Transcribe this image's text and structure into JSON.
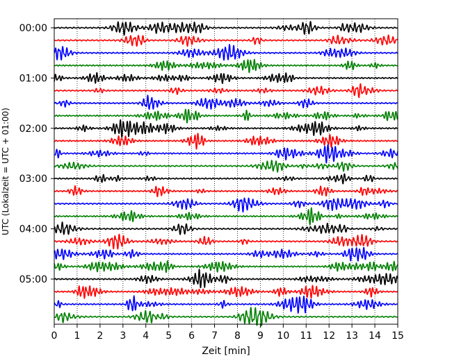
{
  "chart_data": {
    "type": "line",
    "title": "",
    "xlabel": "Zeit  [min]",
    "ylabel": "UTC (Lokalzeit = UTC + 01:00)",
    "xlim": [
      0,
      15
    ],
    "x_ticks": [
      "0",
      "1",
      "2",
      "3",
      "4",
      "5",
      "6",
      "7",
      "8",
      "9",
      "10",
      "11",
      "12",
      "13",
      "14",
      "15"
    ],
    "y_tick_labels": [
      "00:00",
      "01:00",
      "02:00",
      "03:00",
      "04:00",
      "05:00"
    ],
    "rows_per_hour": 4,
    "row_count": 24,
    "row_interval_minutes": 15,
    "grid": "vertical-dotted",
    "series_colors": [
      "#000000",
      "#ff0000",
      "#0000ff",
      "#008000"
    ]
  }
}
